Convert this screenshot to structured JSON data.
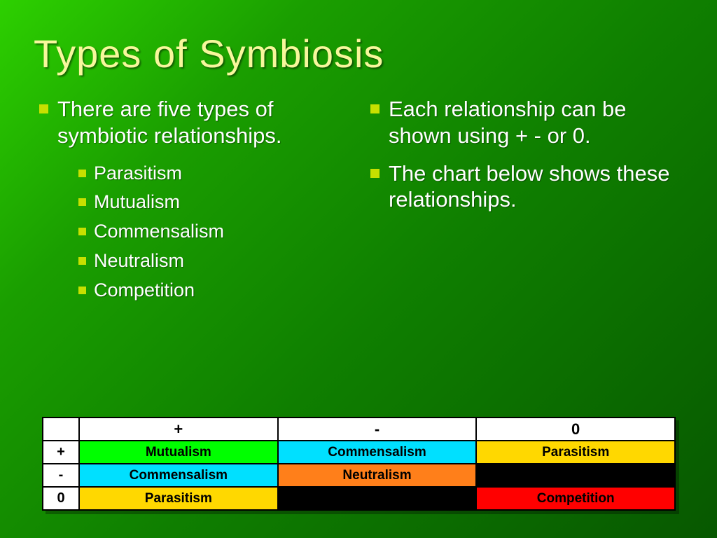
{
  "title": "Types of Symbiosis",
  "left": {
    "main": "There are five types of symbiotic relationships.",
    "items": [
      "Parasitism",
      "Mutualism",
      "Commensalism",
      "Neutralism",
      "Competition"
    ]
  },
  "right": {
    "p1": "Each relationship can be shown using + - or 0.",
    "p2": "The chart below shows these relationships."
  },
  "chart": {
    "col_headers": [
      "+",
      "-",
      "0"
    ],
    "row_headers": [
      "+",
      "-",
      "0"
    ],
    "cells": [
      [
        {
          "label": "Mutualism",
          "bg": "#00ff00",
          "fg": "#000000"
        },
        {
          "label": "Commensalism",
          "bg": "#00e0ff",
          "fg": "#000000"
        },
        {
          "label": "Parasitism",
          "bg": "#ffd800",
          "fg": "#000000"
        }
      ],
      [
        {
          "label": "Commensalism",
          "bg": "#00e0ff",
          "fg": "#000000"
        },
        {
          "label": "Neutralism",
          "bg": "#ff7f1a",
          "fg": "#000000"
        },
        {
          "label": "",
          "bg": "#000000",
          "fg": "#000000"
        }
      ],
      [
        {
          "label": "Parasitism",
          "bg": "#ffd800",
          "fg": "#000000"
        },
        {
          "label": "",
          "bg": "#000000",
          "fg": "#000000"
        },
        {
          "label": "Competition",
          "bg": "#ff0000",
          "fg": "#000000"
        }
      ]
    ],
    "border_color": "#000000",
    "header_bg": "#ffffff",
    "font_family": "Arial",
    "font_weight": "bold",
    "cell_fontsize": 19,
    "header_fontsize": 22
  },
  "styling": {
    "title_color": "#f7f79c",
    "title_fontsize": 56,
    "title_font": "Impact",
    "body_color": "#ffffff",
    "body_fontsize_lvl1": 31,
    "body_fontsize_lvl2": 27,
    "bullet_color": "#c7e000",
    "bullet_shape": "square",
    "background_gradient": [
      "#2dd000",
      "#1a9e00",
      "#0f7f00",
      "#075800"
    ],
    "slide_width": 1024,
    "slide_height": 768
  }
}
